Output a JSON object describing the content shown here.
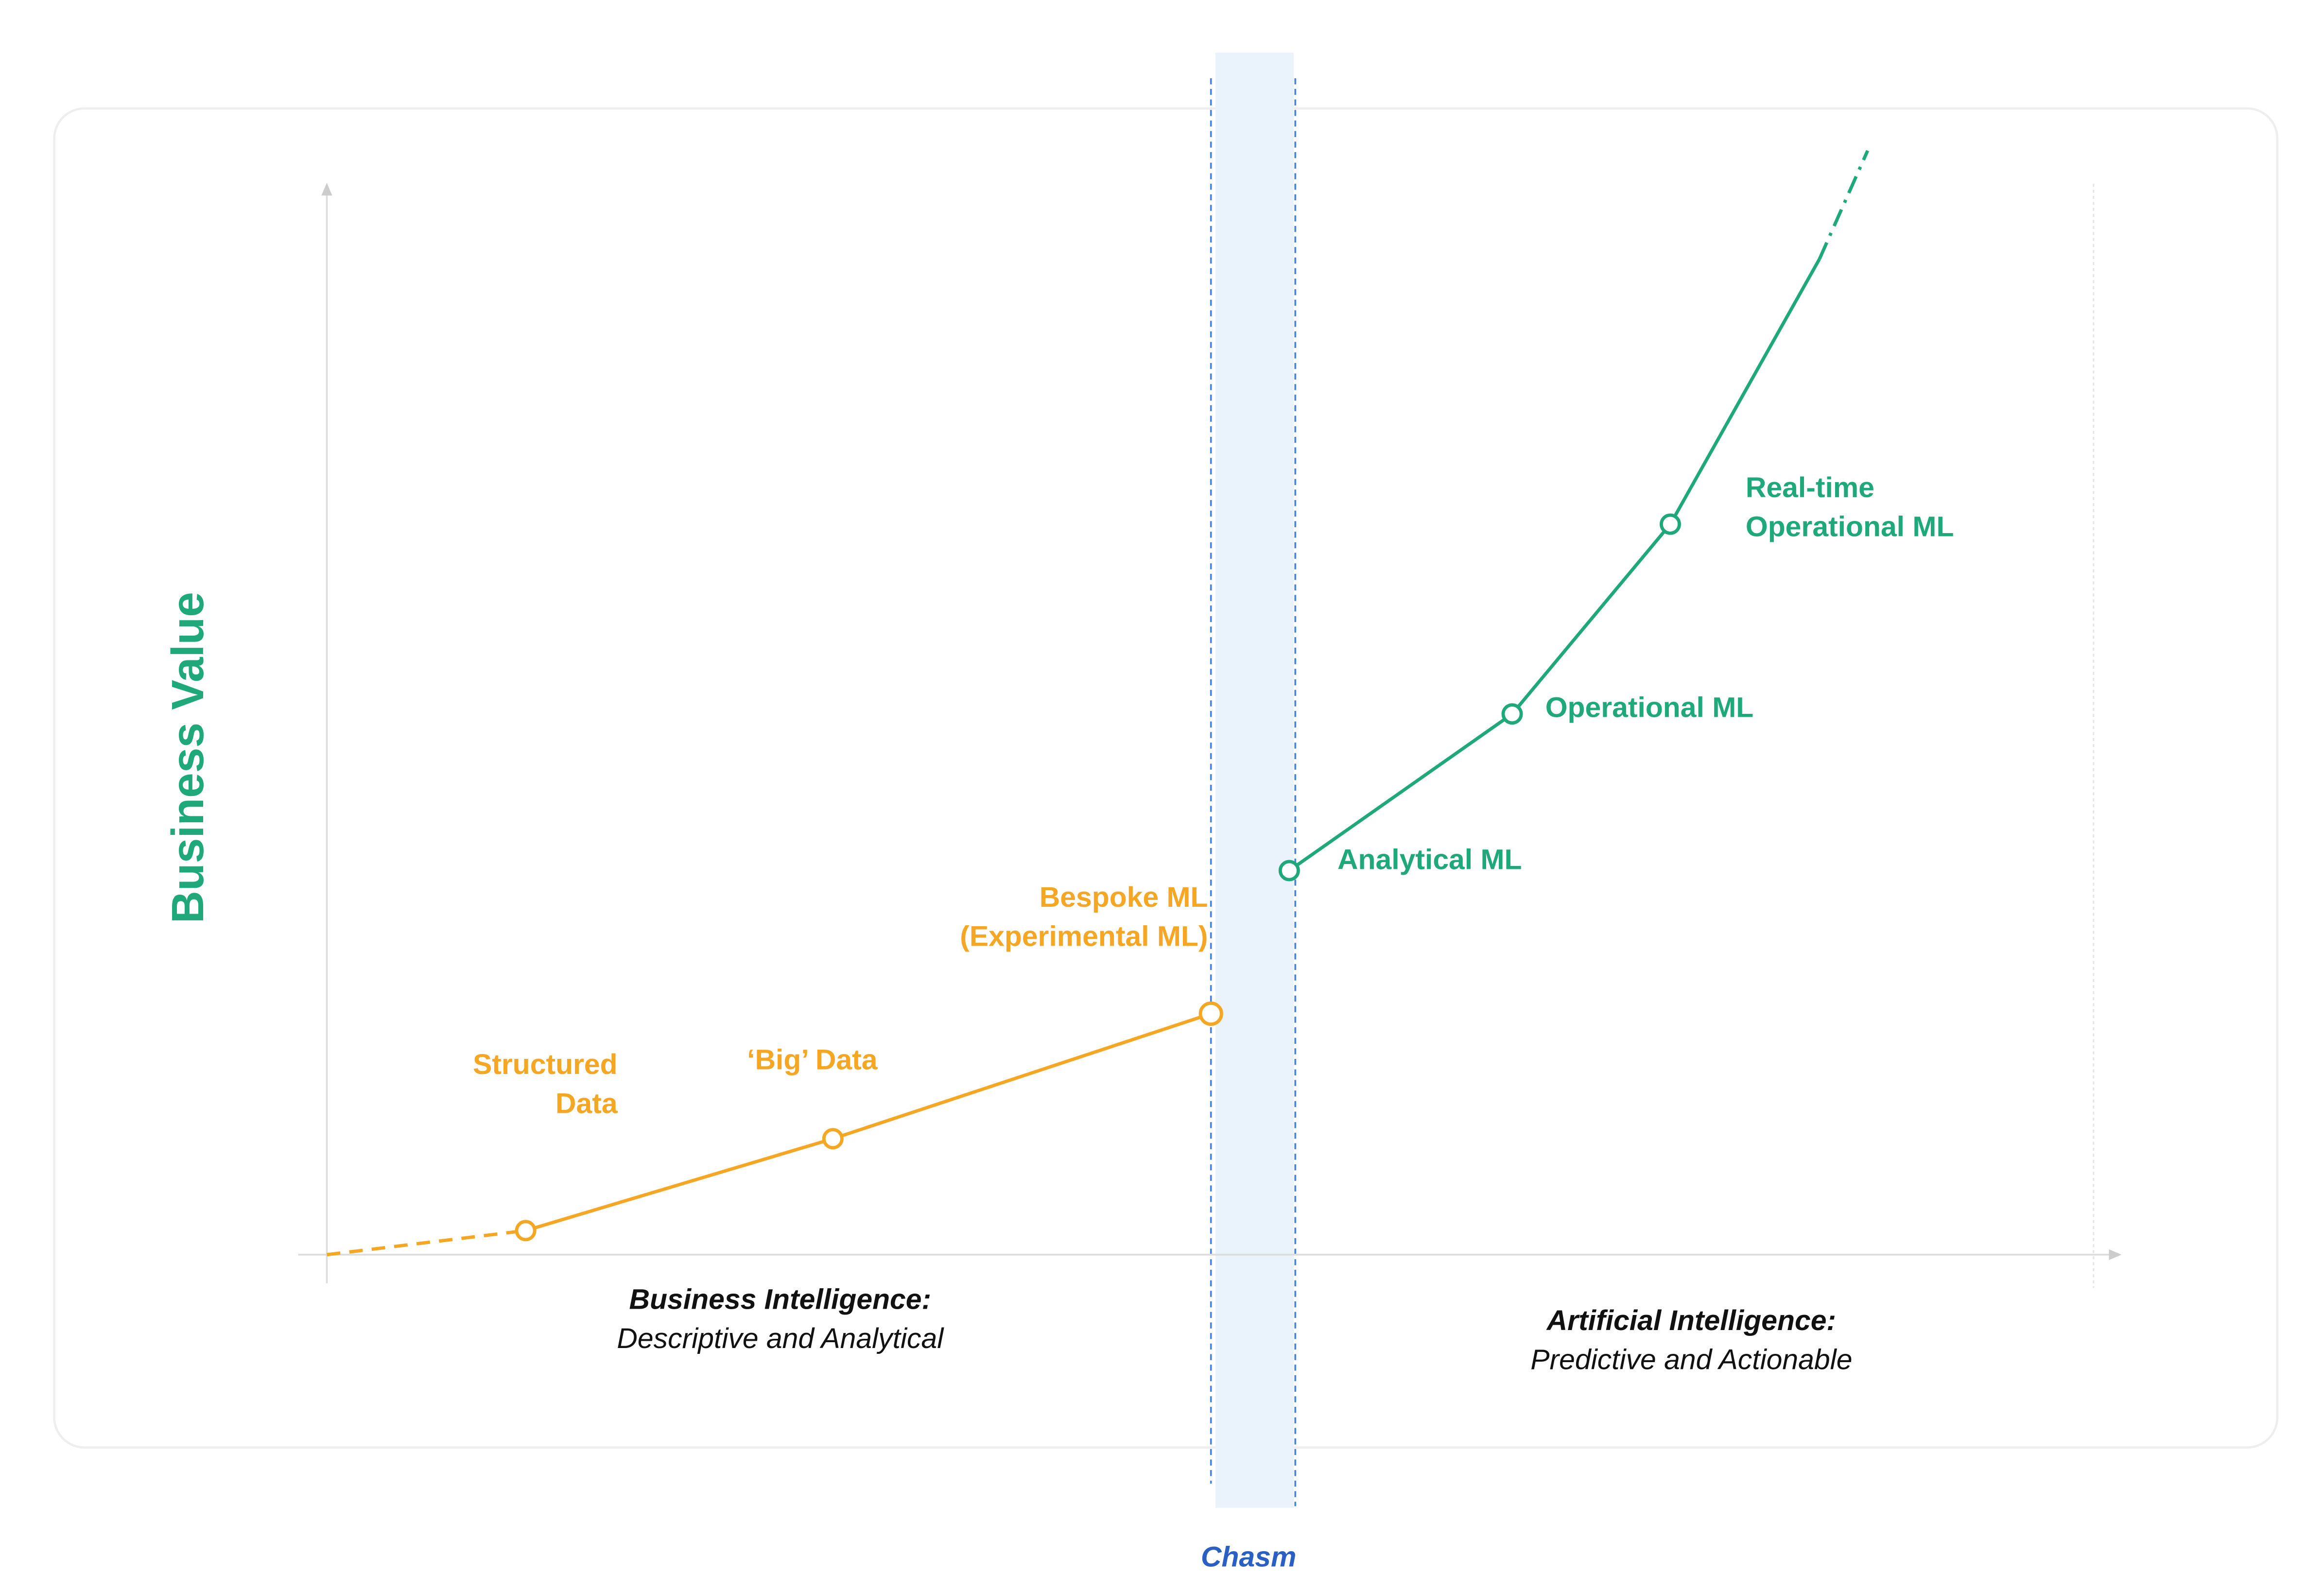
{
  "y_axis_label": "Business Value",
  "stages": [
    {
      "lines": [
        "Structured",
        "Data"
      ]
    },
    {
      "lines": [
        "‘Big’ Data"
      ]
    },
    {
      "lines": [
        "Bespoke ML",
        "(Experimental ML)"
      ]
    },
    {
      "lines": [
        "Analytical ML"
      ]
    },
    {
      "lines": [
        "Operational ML"
      ]
    },
    {
      "lines": [
        "Real-time",
        "Operational ML"
      ]
    }
  ],
  "regions": [
    {
      "title": "Business Intelligence:",
      "subtitle": "Descriptive and Analytical"
    },
    {
      "title": "Artificial Intelligence:",
      "subtitle": "Predictive and Actionable"
    }
  ],
  "chasm_label": "Chasm"
}
